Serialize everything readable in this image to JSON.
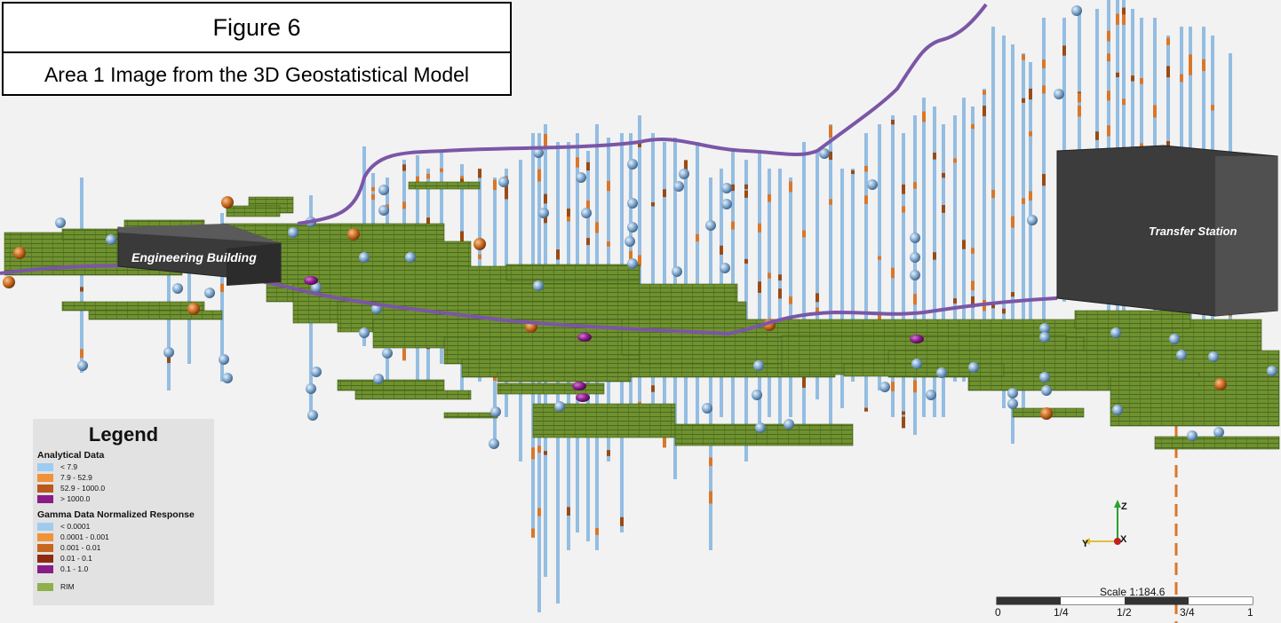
{
  "figure": {
    "title": "Figure 6",
    "subtitle": "Area 1 Image from the 3D Geostatistical Model"
  },
  "buildings": {
    "engineering": "Engineering Building",
    "transfer": "Transfer Station"
  },
  "legend": {
    "title": "Legend",
    "analytical": {
      "heading": "Analytical Data",
      "items": [
        {
          "label": "< 7.9",
          "color": "#9ecbf0"
        },
        {
          "label": "7.9 - 52.9",
          "color": "#f0923a"
        },
        {
          "label": "52.9 - 1000.0",
          "color": "#b9581a"
        },
        {
          "label": "> 1000.0",
          "color": "#8a1c8a"
        }
      ]
    },
    "gamma": {
      "heading": "Gamma Data Normalized Response",
      "items": [
        {
          "label": "< 0.0001",
          "color": "#9ecbf0"
        },
        {
          "label": "0.0001 - 0.001",
          "color": "#f0923a"
        },
        {
          "label": "0.001 - 0.01",
          "color": "#c8651f"
        },
        {
          "label": "0.01 - 0.1",
          "color": "#8f2a10"
        },
        {
          "label": "0.1 - 1.0",
          "color": "#8a1c8a"
        }
      ]
    },
    "rim": {
      "label": "RIM",
      "color": "#8fb04a"
    }
  },
  "axes": {
    "z": "Z",
    "y": "Y",
    "x": "X"
  },
  "scale": {
    "title": "Scale 1:184.6",
    "ticks": [
      "0",
      "1/4",
      "1/2",
      "3/4",
      "1"
    ]
  },
  "colors": {
    "rim_fill": "#6d8f2c",
    "rim_line": "#3f5a16",
    "borehole": "#8fb8de",
    "orange": "#d9772a",
    "purple_line": "#7b56a6",
    "building": "#3c3c3c",
    "sphere": "#7fa8d0"
  }
}
